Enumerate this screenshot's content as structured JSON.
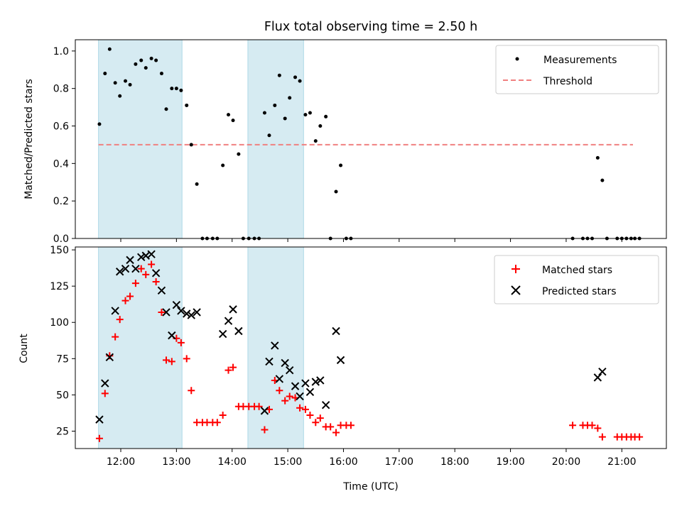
{
  "title": "Flux total observing time = 2.50 h",
  "chart_data": [
    {
      "type": "scatter",
      "ylabel": "Matched/Predicted stars",
      "xlim": [
        "11:11",
        "21:48"
      ],
      "ylim": [
        0,
        1.06
      ],
      "yticks": [
        "0.0",
        "0.2",
        "0.4",
        "0.6",
        "0.8",
        "1.0"
      ],
      "grid": false,
      "legend_position": "top-right",
      "shaded_intervals": [
        [
          "11:36",
          "13:06"
        ],
        [
          "14:17",
          "15:17"
        ]
      ],
      "threshold": {
        "name": "Threshold",
        "value": 0.5,
        "x_range": [
          "11:36",
          "21:12"
        ],
        "color": "#f08080",
        "style": "dashed"
      },
      "series": [
        {
          "name": "Measurements",
          "marker": "dot",
          "color": "#000000",
          "points": [
            [
              "11:37",
              0.61
            ],
            [
              "11:43",
              0.88
            ],
            [
              "11:48",
              1.01
            ],
            [
              "11:54",
              0.83
            ],
            [
              "11:59",
              0.76
            ],
            [
              "12:05",
              0.84
            ],
            [
              "12:10",
              0.82
            ],
            [
              "12:16",
              0.93
            ],
            [
              "12:22",
              0.95
            ],
            [
              "12:27",
              0.91
            ],
            [
              "12:33",
              0.96
            ],
            [
              "12:38",
              0.95
            ],
            [
              "12:44",
              0.88
            ],
            [
              "12:49",
              0.69
            ],
            [
              "12:55",
              0.8
            ],
            [
              "13:00",
              0.8
            ],
            [
              "13:05",
              0.79
            ],
            [
              "13:11",
              0.71
            ],
            [
              "13:16",
              0.5
            ],
            [
              "13:22",
              0.29
            ],
            [
              "13:28",
              0.0
            ],
            [
              "13:33",
              0.0
            ],
            [
              "13:39",
              0.0
            ],
            [
              "13:44",
              0.0
            ],
            [
              "13:50",
              0.39
            ],
            [
              "13:56",
              0.66
            ],
            [
              "14:01",
              0.63
            ],
            [
              "14:07",
              0.45
            ],
            [
              "14:12",
              0.0
            ],
            [
              "14:18",
              0.0
            ],
            [
              "14:24",
              0.0
            ],
            [
              "14:29",
              0.0
            ],
            [
              "14:35",
              0.67
            ],
            [
              "14:40",
              0.55
            ],
            [
              "14:46",
              0.71
            ],
            [
              "14:51",
              0.87
            ],
            [
              "14:57",
              0.64
            ],
            [
              "15:02",
              0.75
            ],
            [
              "15:08",
              0.86
            ],
            [
              "15:13",
              0.84
            ],
            [
              "15:19",
              0.66
            ],
            [
              "15:24",
              0.67
            ],
            [
              "15:30",
              0.52
            ],
            [
              "15:35",
              0.6
            ],
            [
              "15:41",
              0.65
            ],
            [
              "15:46",
              0.0
            ],
            [
              "15:52",
              0.25
            ],
            [
              "15:57",
              0.39
            ],
            [
              "16:03",
              0.0
            ],
            [
              "16:08",
              0.0
            ],
            [
              "20:07",
              0.0
            ],
            [
              "20:18",
              0.0
            ],
            [
              "20:23",
              0.0
            ],
            [
              "20:28",
              0.0
            ],
            [
              "20:34",
              0.43
            ],
            [
              "20:39",
              0.31
            ],
            [
              "20:44",
              0.0
            ],
            [
              "20:55",
              0.0
            ],
            [
              "21:00",
              0.0
            ],
            [
              "21:05",
              0.0
            ],
            [
              "21:10",
              0.0
            ],
            [
              "21:14",
              0.0
            ],
            [
              "21:19",
              0.0
            ]
          ]
        }
      ]
    },
    {
      "type": "scatter",
      "xlabel": "Time (UTC)",
      "ylabel": "Count",
      "xlim": [
        "11:11",
        "21:48"
      ],
      "ylim": [
        13,
        152
      ],
      "yticks": [
        "25",
        "50",
        "75",
        "100",
        "125",
        "150"
      ],
      "xticks": [
        "12:00",
        "13:00",
        "14:00",
        "15:00",
        "16:00",
        "17:00",
        "18:00",
        "19:00",
        "20:00",
        "21:00"
      ],
      "grid": false,
      "legend_position": "top-right",
      "shaded_intervals": [
        [
          "11:36",
          "13:06"
        ],
        [
          "14:17",
          "15:17"
        ]
      ],
      "series": [
        {
          "name": "Matched stars",
          "marker": "plus",
          "color": "#ff0000",
          "points": [
            [
              "11:37",
              20
            ],
            [
              "11:43",
              51
            ],
            [
              "11:48",
              77
            ],
            [
              "11:54",
              90
            ],
            [
              "11:59",
              102
            ],
            [
              "12:05",
              115
            ],
            [
              "12:10",
              118
            ],
            [
              "12:16",
              127
            ],
            [
              "12:22",
              137
            ],
            [
              "12:27",
              133
            ],
            [
              "12:33",
              140
            ],
            [
              "12:38",
              128
            ],
            [
              "12:44",
              107
            ],
            [
              "12:49",
              74
            ],
            [
              "12:55",
              73
            ],
            [
              "13:00",
              89
            ],
            [
              "13:05",
              86
            ],
            [
              "13:11",
              75
            ],
            [
              "13:16",
              53
            ],
            [
              "13:22",
              31
            ],
            [
              "13:28",
              31
            ],
            [
              "13:33",
              31
            ],
            [
              "13:39",
              31
            ],
            [
              "13:44",
              31
            ],
            [
              "13:50",
              36
            ],
            [
              "13:56",
              67
            ],
            [
              "14:01",
              69
            ],
            [
              "14:07",
              42
            ],
            [
              "14:12",
              42
            ],
            [
              "14:18",
              42
            ],
            [
              "14:24",
              42
            ],
            [
              "14:29",
              42
            ],
            [
              "14:35",
              26
            ],
            [
              "14:40",
              40
            ],
            [
              "14:46",
              60
            ],
            [
              "14:51",
              53
            ],
            [
              "14:57",
              46
            ],
            [
              "15:02",
              49
            ],
            [
              "15:08",
              48
            ],
            [
              "15:13",
              41
            ],
            [
              "15:19",
              40
            ],
            [
              "15:24",
              36
            ],
            [
              "15:30",
              31
            ],
            [
              "15:35",
              34
            ],
            [
              "15:41",
              28
            ],
            [
              "15:46",
              28
            ],
            [
              "15:52",
              24
            ],
            [
              "15:57",
              29
            ],
            [
              "16:03",
              29
            ],
            [
              "16:08",
              29
            ],
            [
              "20:07",
              29
            ],
            [
              "20:18",
              29
            ],
            [
              "20:23",
              29
            ],
            [
              "20:28",
              29
            ],
            [
              "20:34",
              27
            ],
            [
              "20:39",
              21
            ],
            [
              "20:55",
              21
            ],
            [
              "21:00",
              21
            ],
            [
              "21:05",
              21
            ],
            [
              "21:10",
              21
            ],
            [
              "21:14",
              21
            ],
            [
              "21:19",
              21
            ]
          ]
        },
        {
          "name": "Predicted stars",
          "marker": "x",
          "color": "#000000",
          "points": [
            [
              "11:37",
              33
            ],
            [
              "11:43",
              58
            ],
            [
              "11:48",
              76
            ],
            [
              "11:54",
              108
            ],
            [
              "11:59",
              135
            ],
            [
              "12:05",
              137
            ],
            [
              "12:10",
              143
            ],
            [
              "12:16",
              137
            ],
            [
              "12:22",
              145
            ],
            [
              "12:27",
              146
            ],
            [
              "12:33",
              147
            ],
            [
              "12:38",
              134
            ],
            [
              "12:44",
              122
            ],
            [
              "12:49",
              107
            ],
            [
              "12:55",
              91
            ],
            [
              "13:00",
              112
            ],
            [
              "13:05",
              108
            ],
            [
              "13:11",
              106
            ],
            [
              "13:16",
              105
            ],
            [
              "13:22",
              107
            ],
            [
              "13:50",
              92
            ],
            [
              "13:56",
              101
            ],
            [
              "14:01",
              109
            ],
            [
              "14:07",
              94
            ],
            [
              "14:35",
              39
            ],
            [
              "14:40",
              73
            ],
            [
              "14:46",
              84
            ],
            [
              "14:51",
              61
            ],
            [
              "14:57",
              72
            ],
            [
              "15:02",
              67
            ],
            [
              "15:08",
              56
            ],
            [
              "15:13",
              49
            ],
            [
              "15:19",
              58
            ],
            [
              "15:24",
              52
            ],
            [
              "15:30",
              59
            ],
            [
              "15:35",
              60
            ],
            [
              "15:41",
              43
            ],
            [
              "15:52",
              94
            ],
            [
              "15:57",
              74
            ],
            [
              "20:34",
              62
            ],
            [
              "20:39",
              66
            ]
          ]
        }
      ]
    }
  ]
}
